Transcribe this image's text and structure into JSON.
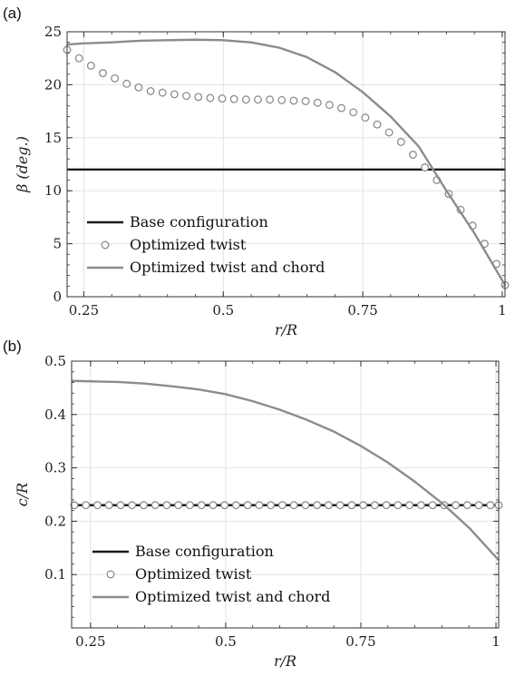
{
  "figure": {
    "colors": {
      "base": "#1a1a1a",
      "optimized": "#8c8c8c",
      "grid": "#e2e2e2",
      "axis": "#333333"
    }
  },
  "chart_data": [
    {
      "panel_label": "(a)",
      "type": "line",
      "xlabel": "r/R",
      "ylabel": "β (deg.)",
      "xlim": [
        0.22,
        1.005
      ],
      "ylim": [
        0,
        25
      ],
      "xticks": [
        0.25,
        0.5,
        0.75,
        1
      ],
      "xtick_labels": [
        "0.25",
        "0.5",
        "0.75",
        "1"
      ],
      "yticks": [
        0,
        5,
        10,
        15,
        20,
        25
      ],
      "ytick_labels": [
        "0",
        "5",
        "10",
        "15",
        "20",
        "25"
      ],
      "grid": true,
      "legend_position": "bottom-left",
      "series": [
        {
          "name": "Base configuration",
          "style": "line",
          "color": "#1a1a1a",
          "x": [
            0.22,
            1.005
          ],
          "y": [
            12.0,
            12.0
          ]
        },
        {
          "name": "Optimized twist",
          "style": "markers",
          "color": "#8c8c8c",
          "x": [
            0.22,
            0.2414,
            0.2628,
            0.2841,
            0.3055,
            0.3269,
            0.3483,
            0.3697,
            0.391,
            0.4124,
            0.4338,
            0.4552,
            0.4766,
            0.4979,
            0.5193,
            0.5407,
            0.5621,
            0.5834,
            0.6048,
            0.6262,
            0.6476,
            0.669,
            0.6903,
            0.7117,
            0.7331,
            0.7545,
            0.7759,
            0.7972,
            0.8186,
            0.84,
            0.8614,
            0.8828,
            0.9041,
            0.9255,
            0.9469,
            0.9683,
            0.9897,
            1.005
          ],
          "y": [
            23.3,
            22.5,
            21.8,
            21.1,
            20.6,
            20.1,
            19.75,
            19.4,
            19.25,
            19.1,
            18.95,
            18.85,
            18.75,
            18.7,
            18.65,
            18.6,
            18.6,
            18.6,
            18.55,
            18.5,
            18.45,
            18.3,
            18.1,
            17.8,
            17.4,
            16.9,
            16.25,
            15.5,
            14.6,
            13.4,
            12.2,
            11.0,
            9.7,
            8.2,
            6.7,
            5.0,
            3.1,
            1.1
          ]
        },
        {
          "name": "Optimized twist and chord",
          "style": "line",
          "color": "#8c8c8c",
          "x": [
            0.22,
            0.25,
            0.3,
            0.35,
            0.4,
            0.45,
            0.5,
            0.55,
            0.6,
            0.65,
            0.7,
            0.75,
            0.8,
            0.85,
            0.9,
            0.95,
            1.005
          ],
          "y": [
            23.8,
            23.9,
            24.0,
            24.15,
            24.2,
            24.25,
            24.2,
            24.0,
            23.5,
            22.6,
            21.2,
            19.3,
            17.0,
            14.2,
            10.0,
            6.0,
            1.1
          ]
        }
      ]
    },
    {
      "panel_label": "(b)",
      "type": "line",
      "xlabel": "r/R",
      "ylabel": "c/R",
      "xlim": [
        0.215,
        1.005
      ],
      "ylim": [
        0,
        0.5
      ],
      "xticks": [
        0.25,
        0.5,
        0.75,
        1
      ],
      "xtick_labels": [
        "0.25",
        "0.5",
        "0.75",
        "1"
      ],
      "yticks": [
        0.1,
        0.2,
        0.3,
        0.4,
        0.5
      ],
      "ytick_labels": [
        "0.1",
        "0.2",
        "0.3",
        "0.4",
        "0.5"
      ],
      "grid": true,
      "legend_position": "bottom-left",
      "series": [
        {
          "name": "Base configuration",
          "style": "line",
          "color": "#1a1a1a",
          "x": [
            0.215,
            1.005
          ],
          "y": [
            0.23,
            0.23
          ]
        },
        {
          "name": "Optimized twist",
          "style": "markers",
          "color": "#8c8c8c",
          "x": [
            0.22,
            0.2414,
            0.2628,
            0.2841,
            0.3055,
            0.3269,
            0.3483,
            0.3697,
            0.391,
            0.4124,
            0.4338,
            0.4552,
            0.4766,
            0.4979,
            0.5193,
            0.5407,
            0.5621,
            0.5834,
            0.6048,
            0.6262,
            0.6476,
            0.669,
            0.6903,
            0.7117,
            0.7331,
            0.7545,
            0.7759,
            0.7972,
            0.8186,
            0.84,
            0.8614,
            0.8828,
            0.9041,
            0.9255,
            0.9469,
            0.9683,
            0.9897,
            1.005
          ],
          "y": [
            0.23,
            0.23,
            0.23,
            0.23,
            0.23,
            0.23,
            0.23,
            0.23,
            0.23,
            0.23,
            0.23,
            0.23,
            0.23,
            0.23,
            0.23,
            0.23,
            0.23,
            0.23,
            0.23,
            0.23,
            0.23,
            0.23,
            0.23,
            0.23,
            0.23,
            0.23,
            0.23,
            0.23,
            0.23,
            0.23,
            0.23,
            0.23,
            0.23,
            0.23,
            0.23,
            0.23,
            0.23,
            0.23
          ]
        },
        {
          "name": "Optimized twist and chord",
          "style": "line",
          "color": "#8c8c8c",
          "x": [
            0.215,
            0.3,
            0.35,
            0.4,
            0.45,
            0.5,
            0.55,
            0.6,
            0.65,
            0.7,
            0.75,
            0.8,
            0.85,
            0.9,
            0.95,
            1.005
          ],
          "y": [
            0.463,
            0.461,
            0.458,
            0.453,
            0.447,
            0.438,
            0.425,
            0.409,
            0.39,
            0.368,
            0.341,
            0.31,
            0.274,
            0.234,
            0.188,
            0.127
          ]
        }
      ]
    }
  ]
}
